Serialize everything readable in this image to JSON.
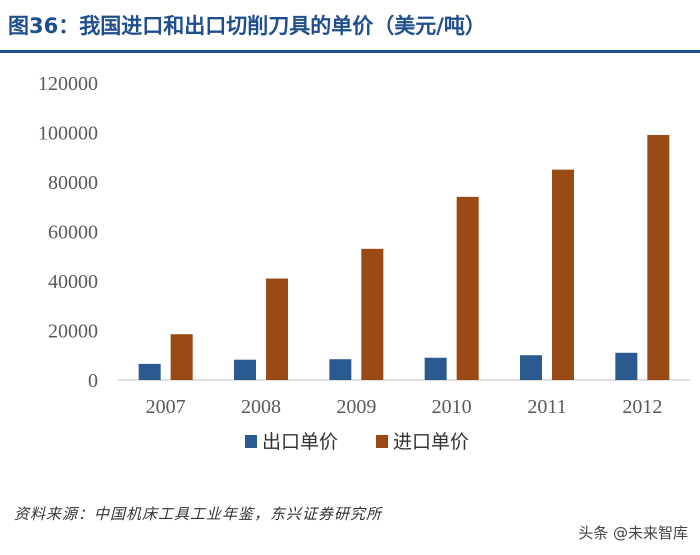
{
  "figure": {
    "title": "图36：我国进口和出口切削刀具的单价（美元/吨）",
    "source": "资料来源：中国机床工具工业年鉴，东兴证券研究所",
    "watermark": "头条 @未来智库"
  },
  "colors": {
    "title": "#1f4e8c",
    "export": "#2a5a8f",
    "import": "#9a4a14",
    "axis": "#bfbfbf"
  },
  "chart_data": {
    "type": "bar",
    "title": "我国进口和出口切削刀具的单价（美元/吨）",
    "xlabel": "",
    "ylabel": "",
    "categories": [
      "2007",
      "2008",
      "2009",
      "2010",
      "2011",
      "2012"
    ],
    "series": [
      {
        "name": "出口单价",
        "values": [
          6500,
          8200,
          8400,
          9000,
          10000,
          11000
        ]
      },
      {
        "name": "进口单价",
        "values": [
          18500,
          41000,
          53000,
          74000,
          85000,
          99000
        ]
      }
    ],
    "ylim": [
      0,
      120000
    ],
    "yticks": [
      0,
      20000,
      40000,
      60000,
      80000,
      100000,
      120000
    ],
    "ytick_labels": [
      "0",
      "20000",
      "40000",
      "60000",
      "80000",
      "100000",
      "120000"
    ],
    "grid": false,
    "legend_position": "bottom"
  }
}
